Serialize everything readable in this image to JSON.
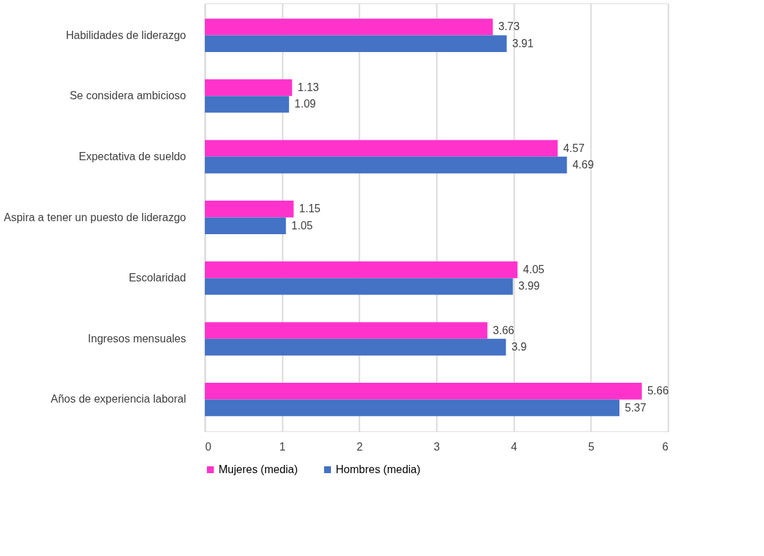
{
  "chart_data": {
    "type": "bar",
    "orientation": "horizontal",
    "categories": [
      "Habilidades de liderazgo",
      "Se considera ambicioso",
      "Expectativa de sueldo",
      "Aspira a tener un puesto de liderazgo",
      "Escolaridad",
      "Ingresos mensuales",
      "Años de experiencia laboral"
    ],
    "series": [
      {
        "name": "Mujeres  (media)",
        "color": "#ff33cc",
        "values": [
          3.73,
          1.13,
          4.57,
          1.15,
          4.05,
          3.66,
          5.66
        ]
      },
      {
        "name": "Hombres  (media)",
        "color": "#4472c4",
        "values": [
          3.91,
          1.09,
          4.69,
          1.05,
          3.99,
          3.9,
          5.37
        ]
      }
    ],
    "xlim": [
      0,
      6
    ],
    "xticks": [
      0,
      1,
      2,
      3,
      4,
      5,
      6
    ],
    "grid": "x",
    "legend": "bottom",
    "data_labels": true
  }
}
